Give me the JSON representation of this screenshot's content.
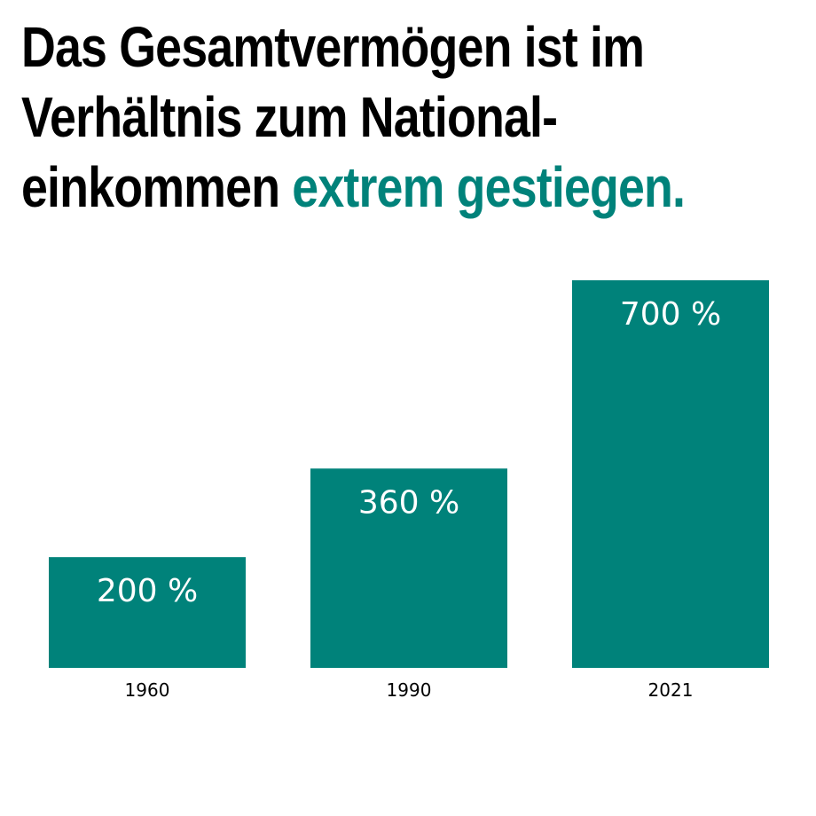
{
  "title": {
    "line1": "Das Gesamtvermögen ist im",
    "line2": "Verhältnis zum National-",
    "line3_plain": "einkommen ",
    "line3_accent": "extrem gestiegen."
  },
  "colors": {
    "bar": "#00827A",
    "accent": "#00827A"
  },
  "chart_data": {
    "type": "bar",
    "categories": [
      "1960",
      "1990",
      "2021"
    ],
    "values": [
      200,
      360,
      700
    ],
    "value_labels": [
      "200 %",
      "360 %",
      "700 %"
    ],
    "xlabel": "",
    "ylabel": "",
    "ylim": [
      0,
      700
    ],
    "grid": false
  }
}
